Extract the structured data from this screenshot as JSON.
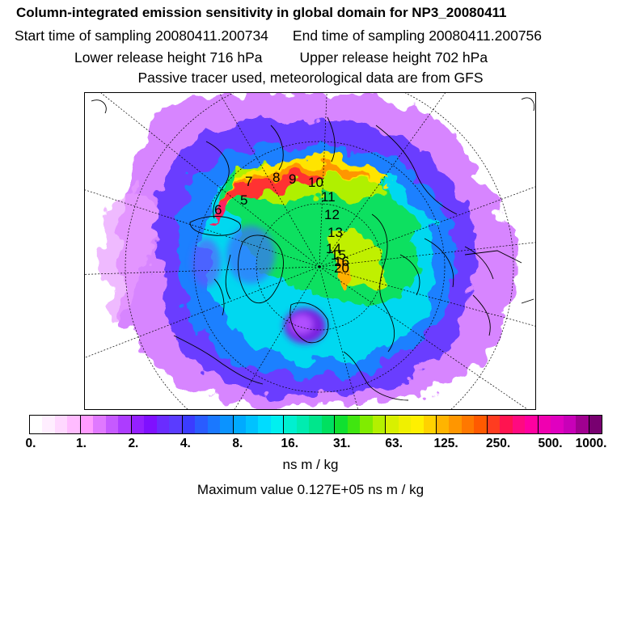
{
  "header": {
    "title": "Column-integrated emission sensitivity in global domain for NP3_20080411",
    "start_time": "Start time of sampling 20080411.200734",
    "end_time": "End time of sampling 20080411.200756",
    "lower_release": "Lower release height  716 hPa",
    "upper_release": "Upper release height  702 hPa",
    "tracer_note": "Passive tracer used, meteorological data are from GFS"
  },
  "map": {
    "projection": "north-polar stereographic",
    "trajectory_labels": [
      "7",
      "8",
      "9",
      "10",
      "11",
      "12",
      "13",
      "14",
      "15",
      "16",
      "20",
      "5",
      "6"
    ]
  },
  "colorbar": {
    "colors": [
      "#ffffff",
      "#ffeeff",
      "#ffd8ff",
      "#ffbcff",
      "#ff9cff",
      "#e079ff",
      "#c65aff",
      "#ad3cff",
      "#9420ff",
      "#7f10ff",
      "#6a2cff",
      "#5a3cff",
      "#3b3cff",
      "#2a5cff",
      "#1a78ff",
      "#0b93ff",
      "#00aaff",
      "#00c2ff",
      "#00dcff",
      "#00f0f0",
      "#00f0d0",
      "#00ecb0",
      "#00e68c",
      "#00e060",
      "#10e030",
      "#40e610",
      "#80ec00",
      "#b4f000",
      "#d8f000",
      "#f0f000",
      "#fff000",
      "#ffd200",
      "#ffb400",
      "#ff9600",
      "#ff7800",
      "#ff5a00",
      "#ff3c20",
      "#ff1450",
      "#ff0a80",
      "#ff00a0",
      "#f000b0",
      "#e000c0",
      "#c800b8",
      "#a00090",
      "#780070"
    ],
    "tick_labels": [
      "0.",
      "1.",
      "2.",
      "4.",
      "8.",
      "16.",
      "31.",
      "63.",
      "125.",
      "250.",
      "500.",
      "1000."
    ],
    "unit": "ns m / kg"
  },
  "max_value_text": "Maximum value  0.127E+05 ns m / kg"
}
